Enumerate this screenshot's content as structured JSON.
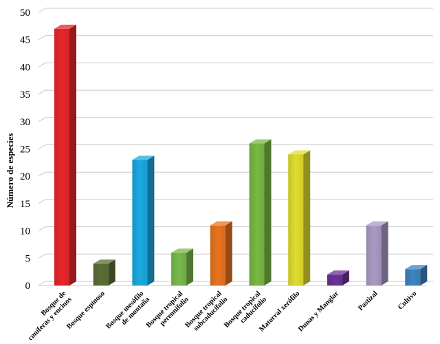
{
  "chart_data": {
    "type": "bar",
    "ylabel": "Número de especies",
    "xlabel": "",
    "ylim": [
      0,
      50
    ],
    "yticks": [
      0,
      5,
      10,
      15,
      20,
      25,
      30,
      35,
      40,
      45,
      50
    ],
    "grid": true,
    "categories": [
      [
        "Bosque de",
        "coníferas y encinos"
      ],
      [
        "Bosque espinoso"
      ],
      [
        "Bosque mesófilo",
        "de montaña"
      ],
      [
        "Bosque tropical",
        "perennifolio"
      ],
      [
        "Bosque tropical",
        "subcaducifolio"
      ],
      [
        "Bosque tropical",
        "caducifolio"
      ],
      [
        "Matorral xerófilo"
      ],
      [
        "Dunas y Manglar"
      ],
      [
        "Pastizal"
      ],
      [
        "Cultivo"
      ]
    ],
    "values": [
      47,
      4,
      23,
      6,
      11,
      26,
      24,
      2,
      11,
      3
    ],
    "colors": [
      "#e8262a",
      "#5a6f34",
      "#1aa9e0",
      "#77b94a",
      "#e8741f",
      "#79b843",
      "#e1dc2e",
      "#6b3299",
      "#a99ac4",
      "#3d83c2"
    ]
  }
}
